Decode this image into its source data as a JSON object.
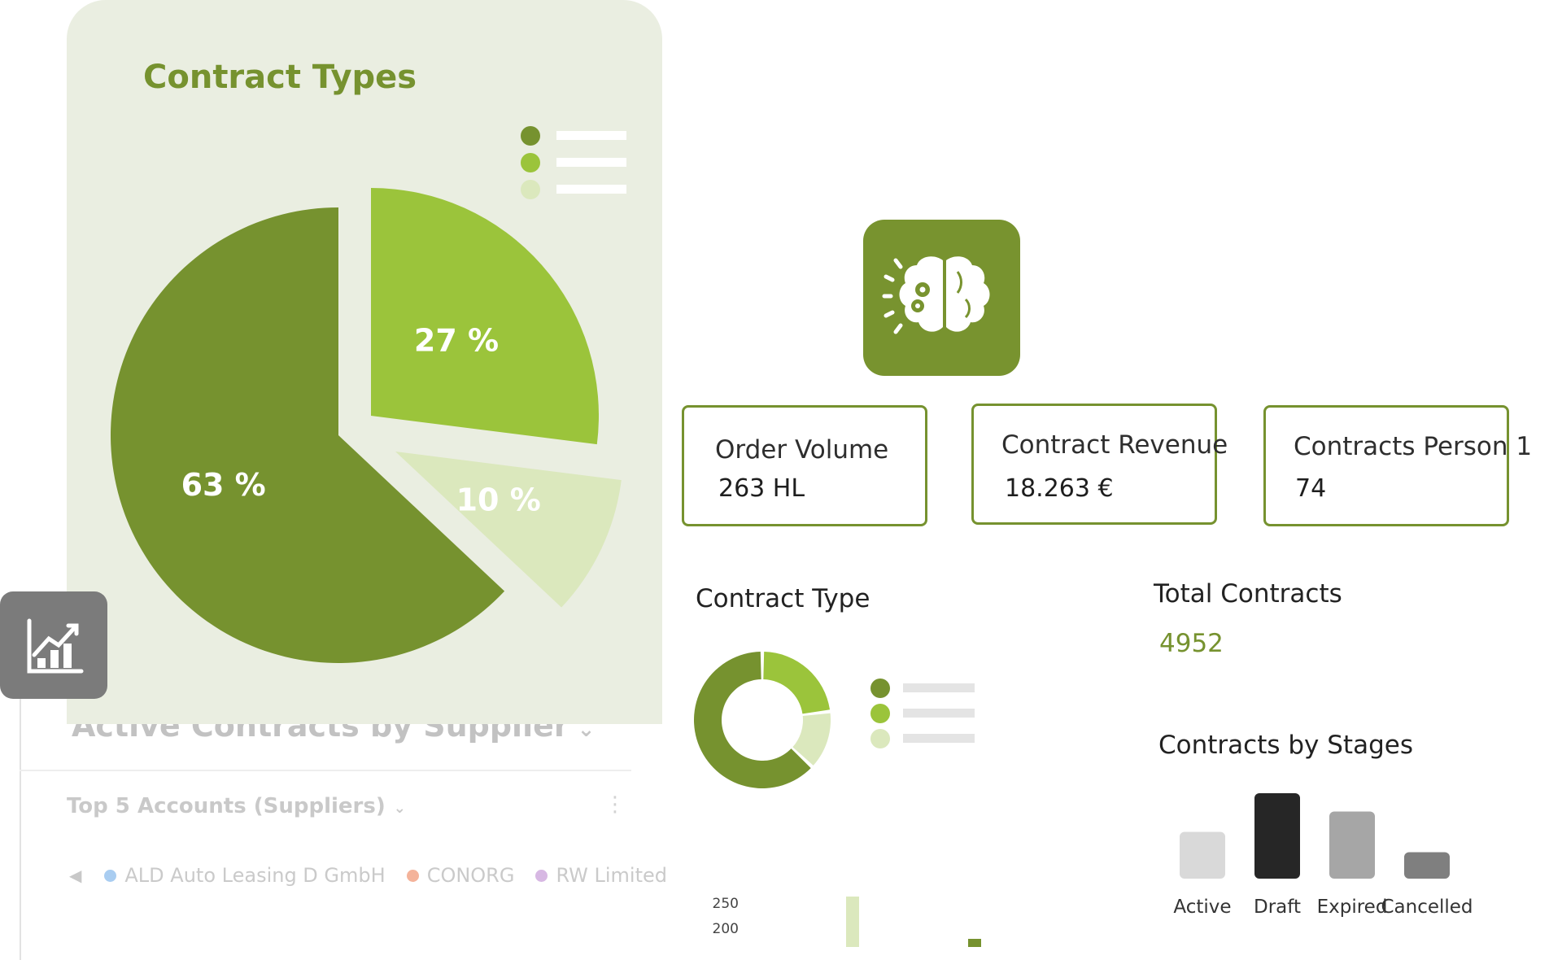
{
  "background_card": {
    "title": "Active Contracts by Supplier",
    "subtitle": "Top 5 Accounts (Suppliers)",
    "legend": [
      {
        "label": "ALD Auto Leasing D GmbH",
        "color": "#a9cdf1"
      },
      {
        "label": "CONORG",
        "color": "#f4b39a"
      },
      {
        "label": "RW Limited",
        "color": "#d7b8e3"
      }
    ]
  },
  "contract_types_panel": {
    "title": "Contract Types",
    "legend_colors": [
      "#76922f",
      "#9bc43b",
      "#dbe8bd"
    ]
  },
  "kpis": {
    "order_volume": {
      "label": "Order Volume",
      "value": "263 HL"
    },
    "contract_revenue": {
      "label": "Contract Revenue",
      "value": "18.263 €"
    },
    "contracts_person": {
      "label": "Contracts Person 1",
      "value": "74"
    }
  },
  "contract_type": {
    "title": "Contract Type",
    "legend_colors": [
      "#76922f",
      "#9bc43b",
      "#dbe8bd"
    ]
  },
  "total_contracts": {
    "title": "Total Contracts",
    "value": "4952"
  },
  "stages": {
    "title": "Contracts by Stages"
  },
  "icons": {
    "brain_tile": "brain-gears-icon",
    "chart_tile": "bar-chart-icon",
    "dropdown": "chevron-down-icon",
    "more": "kebab-menu-icon",
    "scroll_left": "caret-left-icon"
  },
  "colors": {
    "brand_green": "#76922f",
    "light_green": "#9bc43b",
    "pale_green": "#dbe8bd",
    "panel_bg": "#eaeee1"
  },
  "chart_data": [
    {
      "type": "pie",
      "title": "Contract Types",
      "values": [
        63,
        27,
        10
      ],
      "labels": [
        "63 %",
        "27 %",
        "10 %"
      ],
      "colors": [
        "#76922f",
        "#9bc43b",
        "#dbe8bd"
      ]
    },
    {
      "type": "pie",
      "title": "Contract Type",
      "values": [
        63,
        23,
        14
      ],
      "colors": [
        "#76922f",
        "#9bc43b",
        "#dbe8bd"
      ]
    },
    {
      "type": "bar",
      "title": "Contracts by Stages",
      "categories": [
        "Active",
        "Draft",
        "Expired",
        "Cancelled"
      ],
      "values": [
        2.3,
        4.2,
        3.3,
        1.3
      ],
      "colors": [
        "#d9d9d9",
        "#262626",
        "#a6a6a6",
        "#7f7f7f"
      ]
    },
    {
      "type": "bar",
      "ytick_labels": [
        "250",
        "200"
      ],
      "ylim": [
        0,
        250
      ]
    }
  ]
}
